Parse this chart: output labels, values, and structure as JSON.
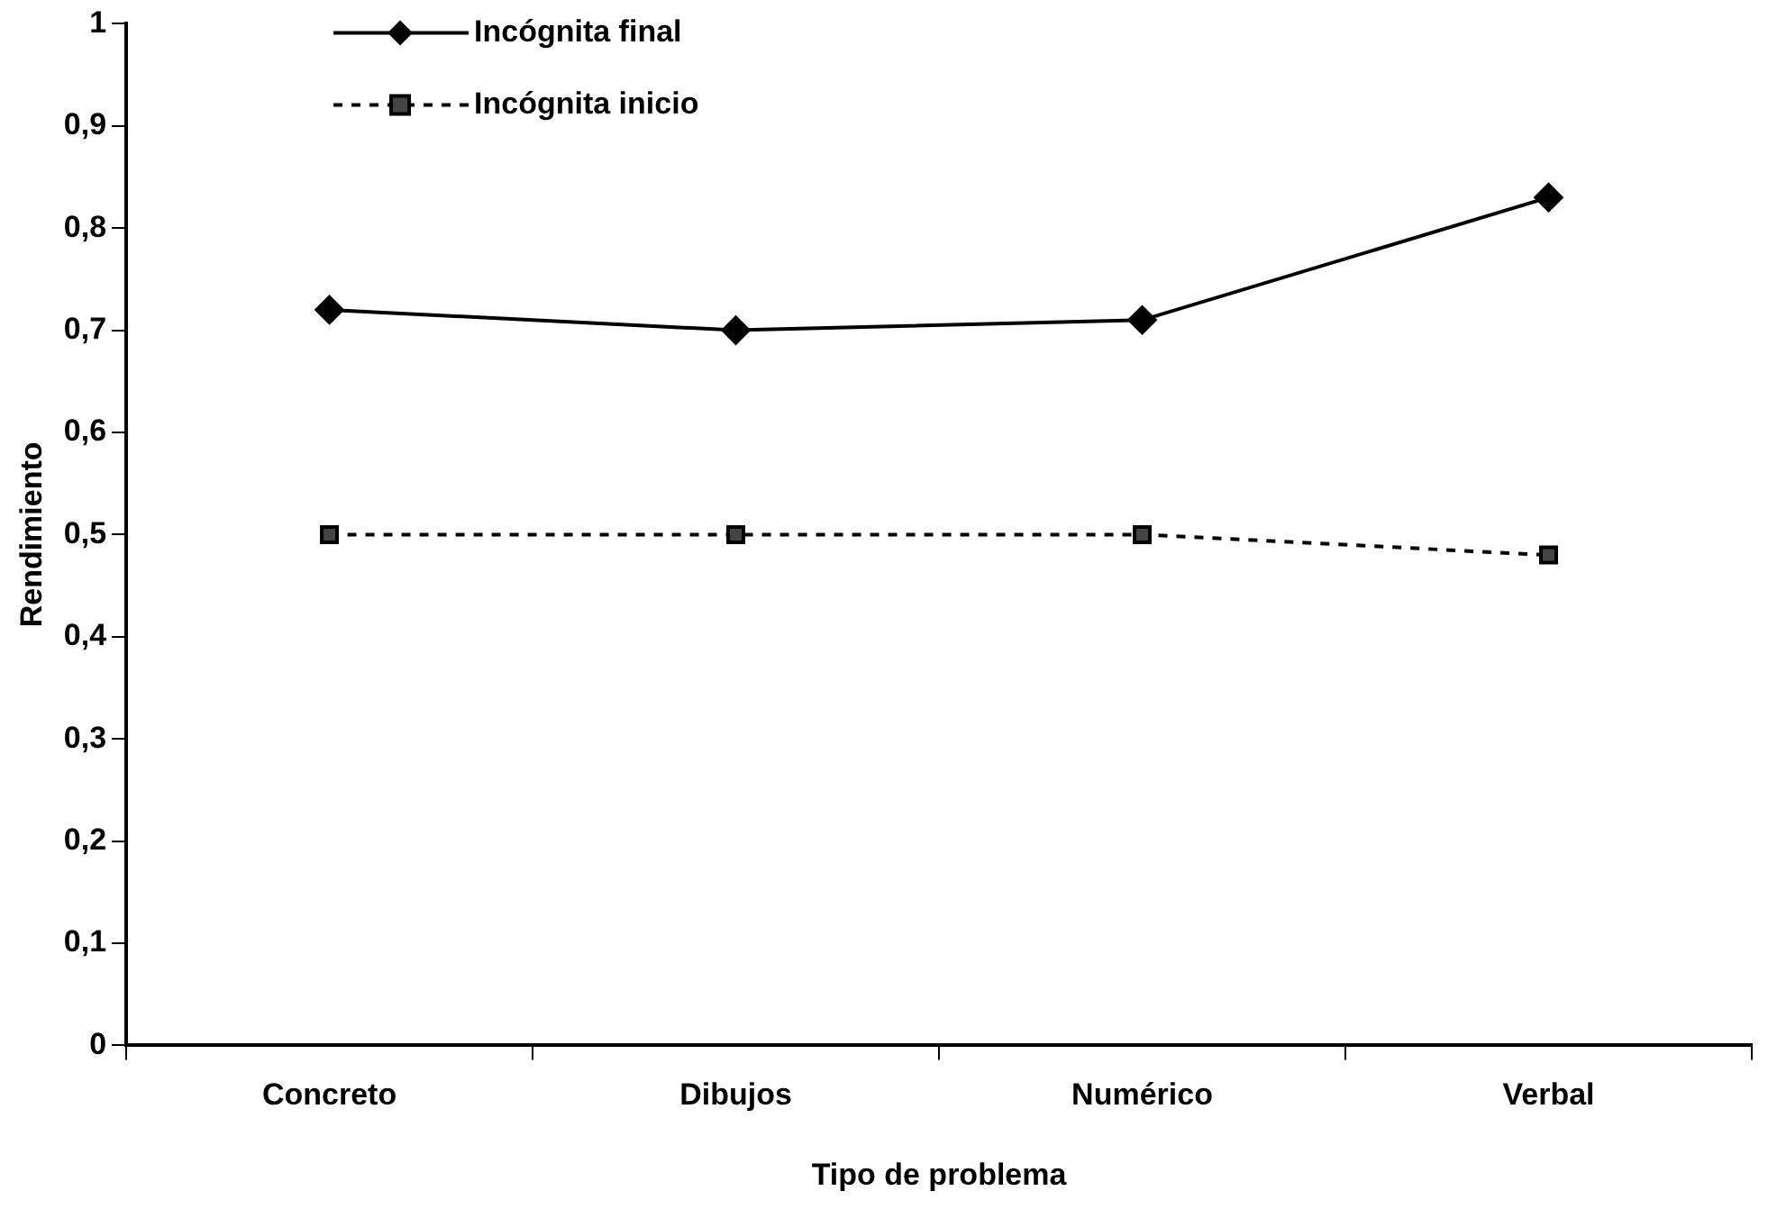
{
  "chart_data": {
    "type": "line",
    "xlabel": "Tipo de problema",
    "ylabel": "Rendimiento",
    "categories": [
      "Concreto",
      "Dibujos",
      "Numérico",
      "Verbal"
    ],
    "series": [
      {
        "name": "Incógnita final",
        "color": "#000000",
        "values": [
          0.72,
          0.7,
          0.71,
          0.83
        ],
        "marker": "diamond",
        "line_style": "solid"
      },
      {
        "name": "Incógnita inicio",
        "color": "#000000",
        "values": [
          0.5,
          0.5,
          0.5,
          0.48
        ],
        "marker": "square",
        "line_style": "dashed"
      }
    ],
    "ylim": [
      0,
      1
    ],
    "yticks": [
      0,
      {
        "value": 0.1,
        "label": "0,1"
      },
      {
        "value": 0.2,
        "label": "0,2"
      },
      {
        "value": 0.3,
        "label": "0,3"
      },
      {
        "value": 0.4,
        "label": "0,4"
      },
      {
        "value": 0.5,
        "label": "0,5"
      },
      {
        "value": 0.6,
        "label": "0,6"
      },
      {
        "value": 0.7,
        "label": "0,7"
      },
      {
        "value": 0.8,
        "label": "0,8"
      },
      {
        "value": 0.9,
        "label": "0,9"
      },
      1
    ],
    "grid": false,
    "legend": "top left"
  }
}
